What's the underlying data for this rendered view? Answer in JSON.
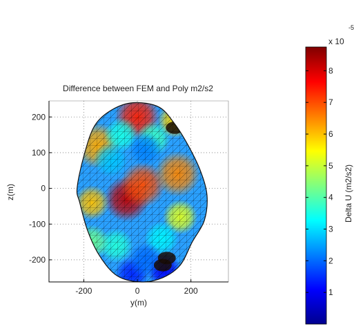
{
  "chart_data": {
    "type": "heatmap",
    "title": "Difference between FEM and Poly m2/s2",
    "xlabel": "y(m)",
    "ylabel": "z(m)",
    "xlim": [
      -330,
      340
    ],
    "ylim": [
      -262,
      245
    ],
    "xticks": [
      -200,
      0,
      200
    ],
    "yticks": [
      -200,
      -100,
      0,
      100,
      200
    ],
    "grid": true,
    "colorbar": {
      "label": "Delta U (m2/s2)",
      "exponent_base": "x 10",
      "exponent": "-5",
      "range": [
        0,
        8.75
      ],
      "ticks": [
        1,
        2,
        3,
        4,
        5,
        6,
        7,
        8
      ],
      "colormap": "jet"
    },
    "body_outline": [
      [
        -15,
        240
      ],
      [
        80,
        228
      ],
      [
        140,
        180
      ],
      [
        190,
        120
      ],
      [
        235,
        50
      ],
      [
        260,
        -20
      ],
      [
        250,
        -90
      ],
      [
        205,
        -150
      ],
      [
        160,
        -215
      ],
      [
        95,
        -250
      ],
      [
        15,
        -262
      ],
      [
        -75,
        -245
      ],
      [
        -140,
        -190
      ],
      [
        -185,
        -120
      ],
      [
        -215,
        -40
      ],
      [
        -225,
        0
      ],
      [
        -200,
        90
      ],
      [
        -160,
        175
      ],
      [
        -95,
        220
      ]
    ],
    "hotspots": [
      {
        "y": -40,
        "z": -30,
        "value": 8.2
      },
      {
        "y": 20,
        "z": 10,
        "value": 7.0
      },
      {
        "y": 0,
        "z": 200,
        "value": 7.4
      },
      {
        "y": 140,
        "z": 190,
        "value": 5.8
      },
      {
        "y": 150,
        "z": 40,
        "value": 6.5
      },
      {
        "y": 160,
        "z": -80,
        "value": 5.2
      },
      {
        "y": -150,
        "z": 120,
        "value": 6.2
      },
      {
        "y": -170,
        "z": -40,
        "value": 6.0
      },
      {
        "y": -60,
        "z": 150,
        "value": 3.5
      },
      {
        "y": 60,
        "z": 140,
        "value": 3.8
      },
      {
        "y": 30,
        "z": 110,
        "value": 2.2
      },
      {
        "y": -100,
        "z": 80,
        "value": 2.8
      },
      {
        "y": 90,
        "z": -140,
        "value": 3.2
      },
      {
        "y": -80,
        "z": -160,
        "value": 3.6
      },
      {
        "y": 100,
        "z": -230,
        "value": 1.0
      },
      {
        "y": -20,
        "z": -240,
        "value": 1.4
      },
      {
        "y": 30,
        "z": -200,
        "value": 2.0
      },
      {
        "y": -170,
        "z": -150,
        "value": 4.2
      }
    ],
    "dark_patches": [
      {
        "y": 140,
        "z": 170
      },
      {
        "y": 110,
        "z": -195
      },
      {
        "y": 95,
        "z": -215
      }
    ]
  }
}
